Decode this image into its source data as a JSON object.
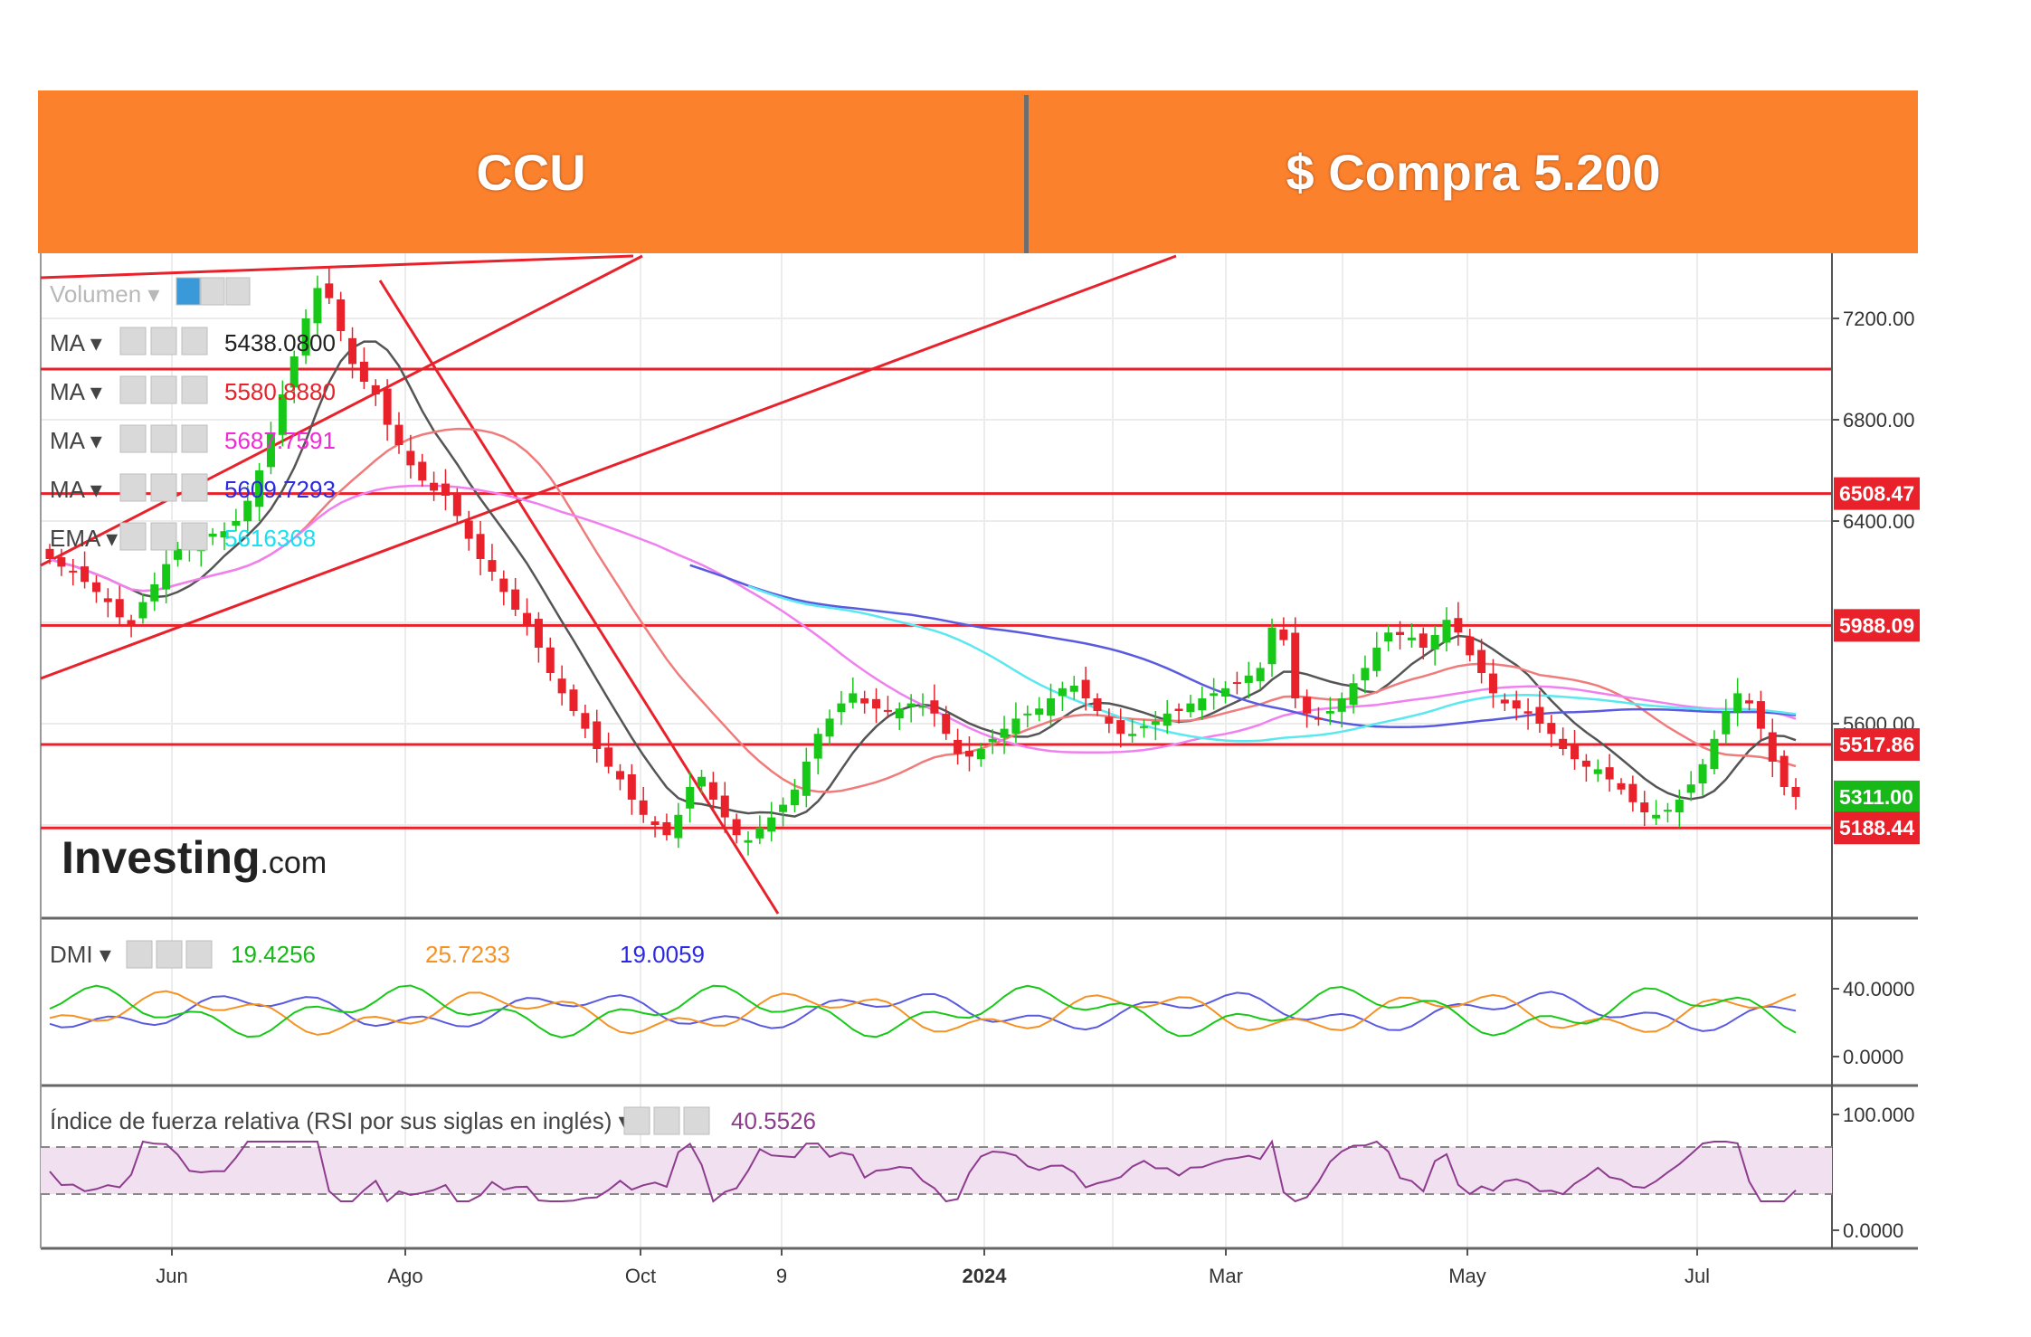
{
  "header": {
    "ticker": "CCU",
    "action": "$ Compra 5.200",
    "background": "#fc812d"
  },
  "chart_data": {
    "type": "candlestick",
    "x_labels": [
      "Jun",
      "Ago",
      "Oct",
      "9",
      "2024",
      "Mar",
      "May",
      "Jul"
    ],
    "price_axis": {
      "ticks": [
        "7200.00",
        "6800.00",
        "6400.00",
        "5600.00"
      ],
      "range": [
        4950,
        7450
      ]
    },
    "price_labels": [
      {
        "value": "6508.47",
        "price": 6508.47,
        "color": "#e8212b"
      },
      {
        "value": "5988.09",
        "price": 5988.09,
        "color": "#e8212b"
      },
      {
        "value": "5517.86",
        "price": 5517.86,
        "color": "#e8212b"
      },
      {
        "value": "5311.00",
        "price": 5311.0,
        "color": "#18b818"
      },
      {
        "value": "5188.44",
        "price": 5188.44,
        "color": "#e8212b"
      }
    ],
    "horizontal_levels": [
      7000,
      6508.47,
      5988.09,
      5517.86,
      5188.44
    ],
    "close_series": [
      6250,
      6220,
      6200,
      6160,
      6120,
      6080,
      6020,
      5990,
      6080,
      6150,
      6230,
      6290,
      6310,
      6330,
      6350,
      6360,
      6400,
      6480,
      6600,
      6750,
      6900,
      7050,
      7200,
      7320,
      7280,
      7150,
      7020,
      6950,
      6900,
      6780,
      6700,
      6620,
      6560,
      6520,
      6500,
      6420,
      6330,
      6250,
      6200,
      6120,
      6050,
      5990,
      5900,
      5800,
      5720,
      5650,
      5580,
      5500,
      5430,
      5380,
      5300,
      5240,
      5200,
      5160,
      5240,
      5350,
      5390,
      5300,
      5230,
      5160,
      5140,
      5190,
      5230,
      5280,
      5340,
      5450,
      5560,
      5620,
      5680,
      5720,
      5680,
      5660,
      5650,
      5660,
      5680,
      5670,
      5640,
      5560,
      5480,
      5470,
      5500,
      5540,
      5580,
      5620,
      5640,
      5660,
      5700,
      5740,
      5750,
      5700,
      5650,
      5600,
      5560,
      5560,
      5590,
      5610,
      5640,
      5650,
      5680,
      5700,
      5720,
      5740,
      5760,
      5790,
      5820,
      5980,
      5930,
      5700,
      5640,
      5620,
      5650,
      5700,
      5760,
      5820,
      5900,
      5960,
      5950,
      5940,
      5900,
      5950,
      6010,
      5960,
      5870,
      5800,
      5720,
      5680,
      5660,
      5640,
      5600,
      5560,
      5500,
      5460,
      5430,
      5420,
      5380,
      5340,
      5290,
      5250,
      5240,
      5260,
      5300,
      5360,
      5440,
      5540,
      5650,
      5720,
      5680,
      5580,
      5450,
      5350,
      5311
    ],
    "moving_averages": [
      {
        "label": "MA",
        "value": "5438.0800",
        "color": "#222222"
      },
      {
        "label": "MA",
        "value": "5580.8880",
        "color": "#e8212b"
      },
      {
        "label": "MA",
        "value": "5687.7591",
        "color": "#f02ad6"
      },
      {
        "label": "MA",
        "value": "5609.7293",
        "color": "#2a2ae0"
      },
      {
        "label": "EMA",
        "value": "5616368",
        "color": "#17e0f0"
      }
    ],
    "dmi": {
      "label": "DMI",
      "values": [
        {
          "value": "19.4256",
          "color": "#18b818"
        },
        {
          "value": "25.7233",
          "color": "#f59224"
        },
        {
          "value": "19.0059",
          "color": "#2a2ae0"
        }
      ],
      "ticks": [
        "40.0000",
        "0.0000"
      ]
    },
    "rsi": {
      "label": "Índice de fuerza relativa (RSI por sus siglas en inglés)",
      "value": "40.5526",
      "color": "#8e3c8e",
      "ticks": [
        "100.000",
        "0.0000"
      ]
    },
    "volume_label": "Volumen",
    "watermark": "Investing.com"
  }
}
